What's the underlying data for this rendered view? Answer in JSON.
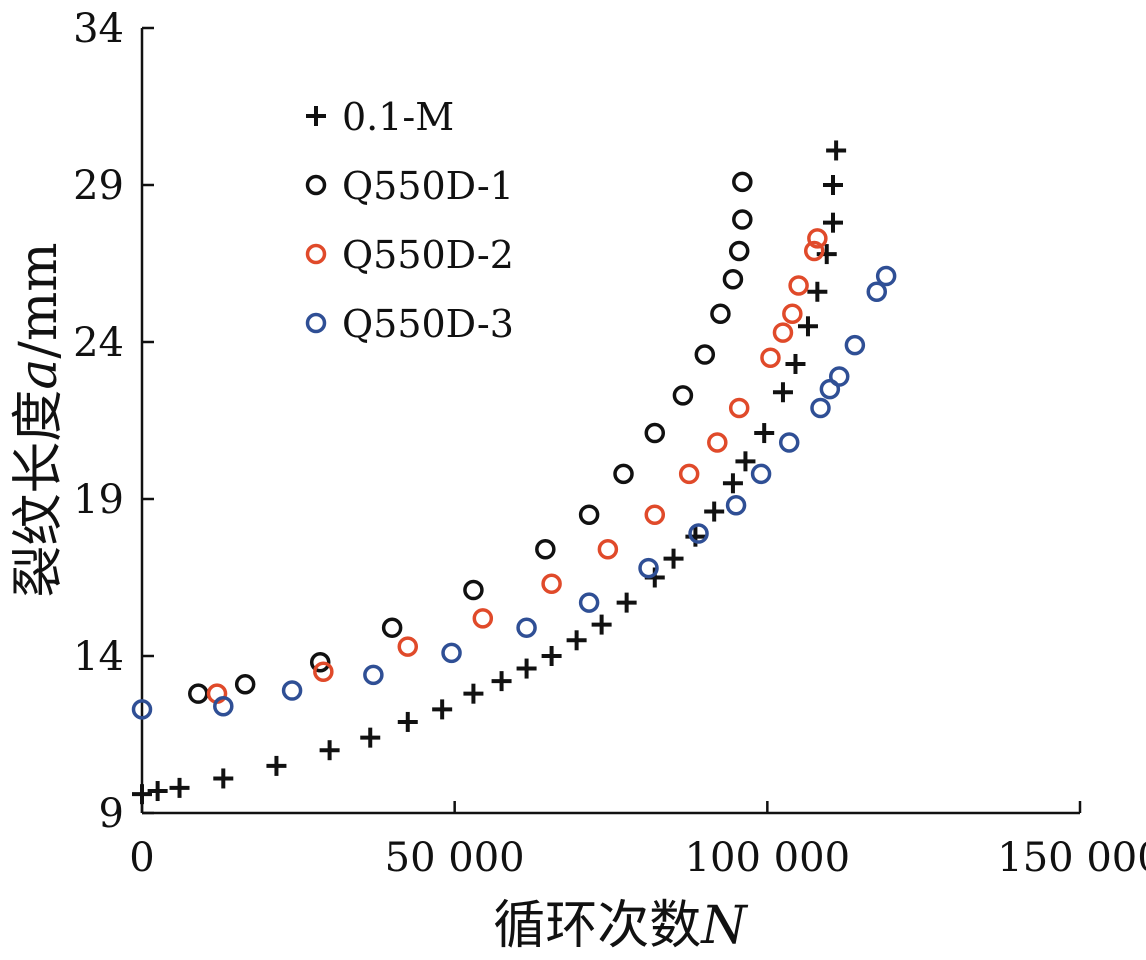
{
  "chart_data": {
    "type": "scatter",
    "title": "",
    "xlabel": {
      "text": "循环次数",
      "variable": "N"
    },
    "ylabel": {
      "prefix": "裂纹长度",
      "variable": "a",
      "unit": "/mm"
    },
    "xlim": [
      0,
      150000
    ],
    "ylim": [
      9,
      34
    ],
    "x_ticks": [
      0,
      50000,
      100000,
      150000
    ],
    "x_tick_labels": [
      "0",
      "50 000",
      "100 000",
      "150 000"
    ],
    "y_ticks": [
      9,
      14,
      19,
      24,
      29,
      34
    ],
    "y_tick_labels": [
      "9",
      "14",
      "19",
      "24",
      "29",
      "34"
    ],
    "grid": false,
    "legend": {
      "position": "top-left"
    },
    "series": [
      {
        "name": "0.1-M",
        "marker": "plus",
        "color": "#111111",
        "points": [
          [
            0,
            9.6
          ],
          [
            2500,
            9.7
          ],
          [
            6000,
            9.8
          ],
          [
            13000,
            10.1
          ],
          [
            21500,
            10.5
          ],
          [
            30000,
            11.0
          ],
          [
            36500,
            11.4
          ],
          [
            42500,
            11.9
          ],
          [
            48000,
            12.3
          ],
          [
            53000,
            12.8
          ],
          [
            57500,
            13.2
          ],
          [
            61500,
            13.6
          ],
          [
            65500,
            14.0
          ],
          [
            69500,
            14.5
          ],
          [
            73500,
            15.0
          ],
          [
            77500,
            15.7
          ],
          [
            82000,
            16.5
          ],
          [
            85000,
            17.1
          ],
          [
            88500,
            17.8
          ],
          [
            91500,
            18.6
          ],
          [
            94500,
            19.5
          ],
          [
            96500,
            20.2
          ],
          [
            99500,
            21.1
          ],
          [
            102500,
            22.4
          ],
          [
            104500,
            23.3
          ],
          [
            106500,
            24.5
          ],
          [
            108000,
            25.6
          ],
          [
            109500,
            26.8
          ],
          [
            110500,
            27.8
          ],
          [
            110500,
            29.0
          ],
          [
            111000,
            30.1
          ]
        ]
      },
      {
        "name": "Q550D-1",
        "marker": "circle",
        "color": "#111111",
        "points": [
          [
            9000,
            12.8
          ],
          [
            16500,
            13.1
          ],
          [
            28500,
            13.8
          ],
          [
            40000,
            14.9
          ],
          [
            53000,
            16.1
          ],
          [
            64500,
            17.4
          ],
          [
            71500,
            18.5
          ],
          [
            77000,
            19.8
          ],
          [
            82000,
            21.1
          ],
          [
            86500,
            22.3
          ],
          [
            90000,
            23.6
          ],
          [
            92500,
            24.9
          ],
          [
            94500,
            26.0
          ],
          [
            95500,
            26.9
          ],
          [
            96000,
            27.9
          ],
          [
            96000,
            29.1
          ]
        ]
      },
      {
        "name": "Q550D-2",
        "marker": "circle",
        "color": "#e04a2a",
        "points": [
          [
            12000,
            12.8
          ],
          [
            29000,
            13.5
          ],
          [
            42500,
            14.3
          ],
          [
            54500,
            15.2
          ],
          [
            65500,
            16.3
          ],
          [
            74500,
            17.4
          ],
          [
            82000,
            18.5
          ],
          [
            87500,
            19.8
          ],
          [
            92000,
            20.8
          ],
          [
            95500,
            21.9
          ],
          [
            100500,
            23.5
          ],
          [
            102500,
            24.3
          ],
          [
            104000,
            24.9
          ],
          [
            105000,
            25.8
          ],
          [
            107500,
            26.9
          ],
          [
            108000,
            27.3
          ]
        ]
      },
      {
        "name": "Q550D-3",
        "marker": "circle",
        "color": "#2f4f95",
        "points": [
          [
            0,
            12.3
          ],
          [
            13000,
            12.4
          ],
          [
            24000,
            12.9
          ],
          [
            37000,
            13.4
          ],
          [
            49500,
            14.1
          ],
          [
            61500,
            14.9
          ],
          [
            71500,
            15.7
          ],
          [
            81000,
            16.8
          ],
          [
            89000,
            17.9
          ],
          [
            95000,
            18.8
          ],
          [
            99000,
            19.8
          ],
          [
            103500,
            20.8
          ],
          [
            108500,
            21.9
          ],
          [
            110000,
            22.5
          ],
          [
            111500,
            22.9
          ],
          [
            114000,
            23.9
          ],
          [
            117500,
            25.6
          ],
          [
            119000,
            26.1
          ]
        ]
      }
    ]
  }
}
